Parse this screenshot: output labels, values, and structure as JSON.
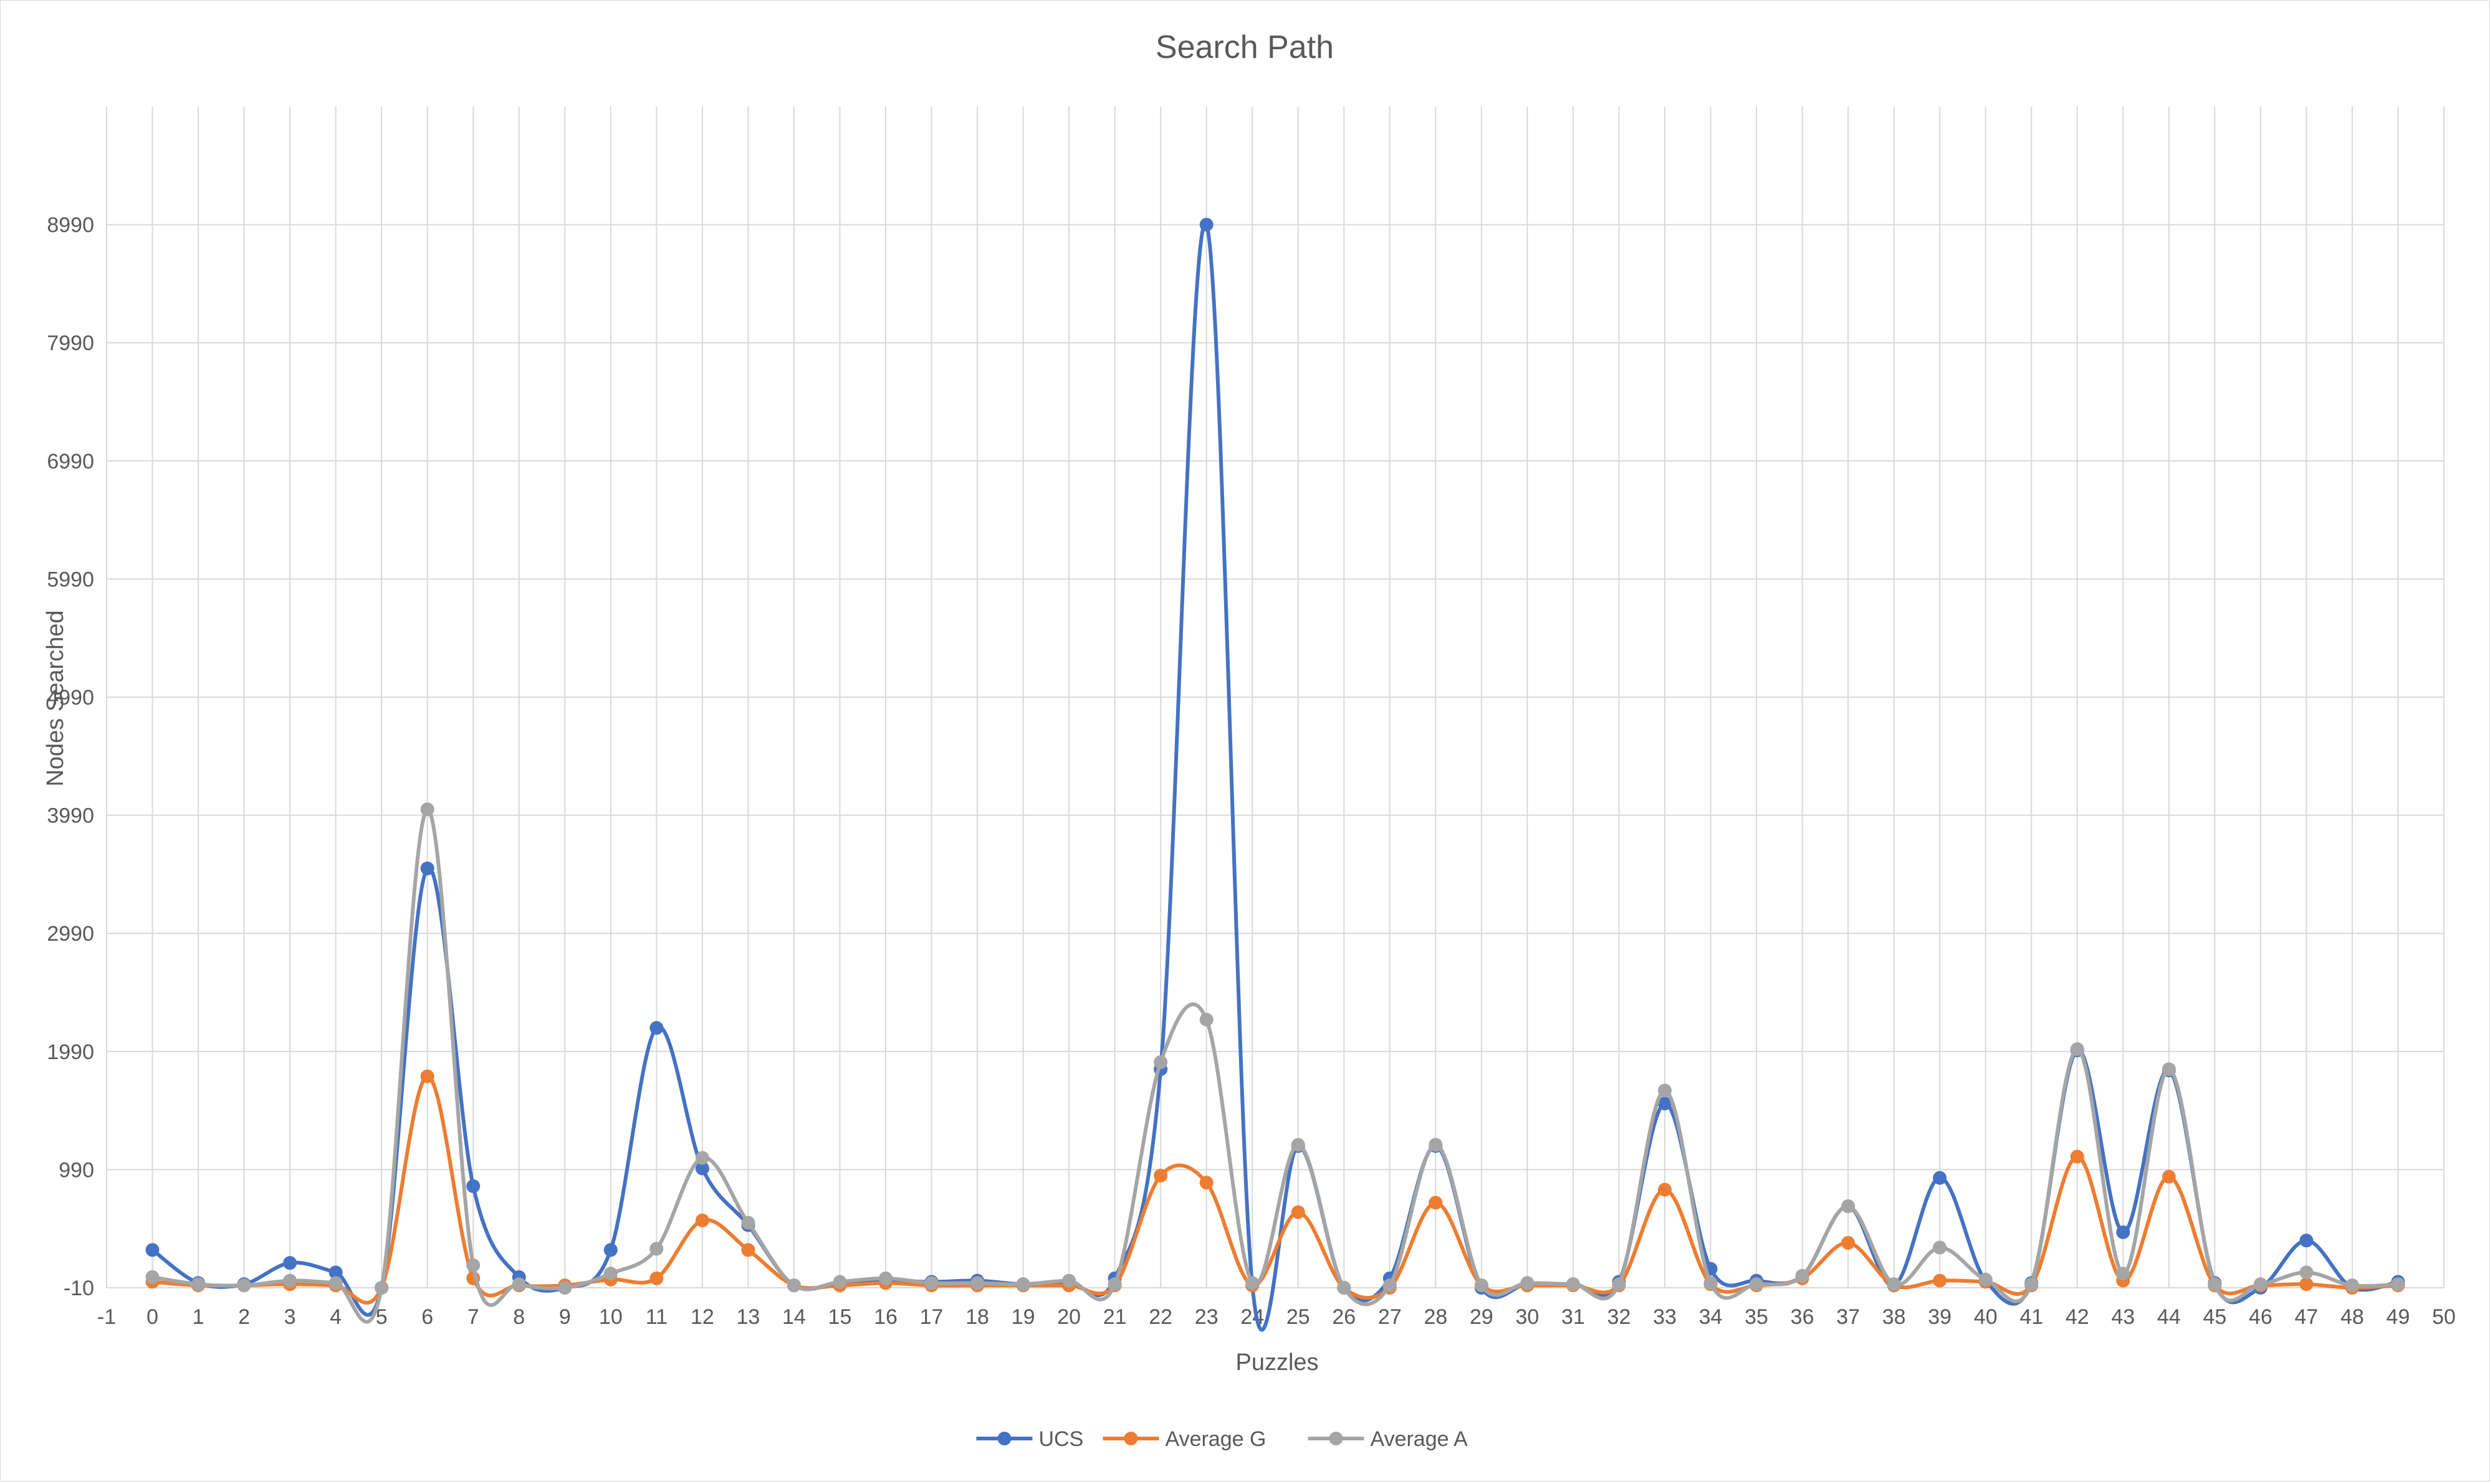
{
  "chart_data": {
    "type": "line",
    "title": "Search Path",
    "xlabel": "Puzzles",
    "ylabel": "Nodes Searched",
    "xlim": [
      -1,
      50
    ],
    "ylim": [
      -10,
      9990
    ],
    "x_ticks": [
      -1,
      0,
      1,
      2,
      3,
      4,
      5,
      6,
      7,
      8,
      9,
      10,
      11,
      12,
      13,
      14,
      15,
      16,
      17,
      18,
      19,
      20,
      21,
      22,
      23,
      24,
      25,
      26,
      27,
      28,
      29,
      30,
      31,
      32,
      33,
      34,
      35,
      36,
      37,
      38,
      39,
      40,
      41,
      42,
      43,
      44,
      45,
      46,
      47,
      48,
      49,
      50
    ],
    "y_ticks": [
      -10,
      990,
      1990,
      2990,
      3990,
      4990,
      5990,
      6990,
      7990,
      8990
    ],
    "grid": true,
    "smooth": true,
    "legend_position": "bottom",
    "x": [
      0,
      1,
      2,
      3,
      4,
      5,
      6,
      7,
      8,
      9,
      10,
      11,
      12,
      13,
      14,
      15,
      16,
      17,
      18,
      19,
      20,
      21,
      22,
      23,
      24,
      25,
      26,
      27,
      28,
      29,
      30,
      31,
      32,
      33,
      34,
      35,
      36,
      37,
      38,
      39,
      40,
      41,
      42,
      43,
      44,
      45,
      46,
      47,
      48,
      49
    ],
    "series": [
      {
        "name": "UCS",
        "color": "#4472c4",
        "values": [
          310,
          30,
          20,
          200,
          120,
          -10,
          3540,
          850,
          80,
          -10,
          310,
          2190,
          1000,
          520,
          10,
          30,
          50,
          40,
          50,
          20,
          30,
          70,
          1840,
          8990,
          10,
          1190,
          -10,
          70,
          1190,
          -10,
          20,
          20,
          40,
          1550,
          150,
          50,
          90,
          680,
          10,
          920,
          50,
          30,
          2000,
          460,
          1830,
          30,
          -10,
          390,
          -10,
          40
        ]
      },
      {
        "name": "Average G",
        "color": "#ed7d31",
        "values": [
          40,
          10,
          10,
          20,
          10,
          -10,
          1780,
          70,
          10,
          10,
          60,
          70,
          560,
          310,
          10,
          10,
          30,
          10,
          10,
          10,
          10,
          10,
          940,
          880,
          10,
          630,
          -10,
          -10,
          710,
          10,
          10,
          10,
          10,
          820,
          20,
          10,
          70,
          370,
          10,
          50,
          40,
          10,
          1100,
          50,
          930,
          10,
          10,
          20,
          -10,
          10
        ]
      },
      {
        "name": "Average A",
        "color": "#a5a5a5",
        "values": [
          80,
          20,
          10,
          50,
          30,
          -10,
          4040,
          180,
          20,
          -10,
          110,
          320,
          1090,
          540,
          10,
          40,
          70,
          30,
          30,
          20,
          50,
          20,
          1900,
          2260,
          30,
          1200,
          -10,
          10,
          1200,
          10,
          30,
          20,
          20,
          1660,
          30,
          20,
          90,
          680,
          20,
          330,
          60,
          20,
          2010,
          110,
          1840,
          20,
          20,
          120,
          10,
          20
        ]
      }
    ]
  }
}
